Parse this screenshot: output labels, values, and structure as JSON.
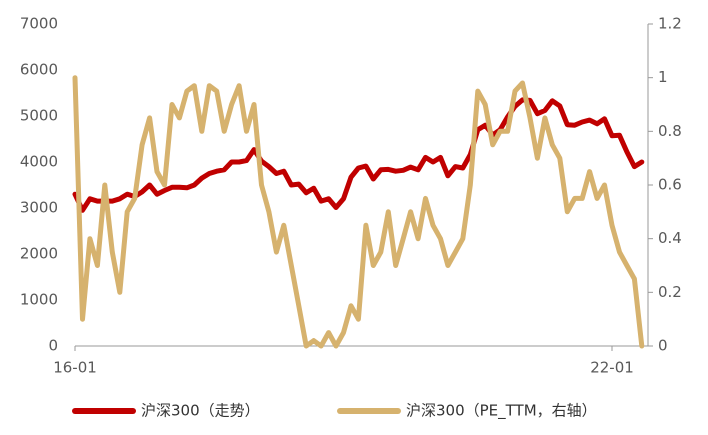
{
  "chart_data": {
    "type": "line",
    "categories": [
      "16-01",
      null,
      null,
      null,
      null,
      null,
      null,
      null,
      null,
      null,
      null,
      null,
      null,
      null,
      null,
      null,
      null,
      null,
      null,
      null,
      null,
      null,
      null,
      null,
      null,
      null,
      null,
      null,
      null,
      null,
      null,
      null,
      null,
      null,
      null,
      null,
      null,
      null,
      null,
      null,
      null,
      null,
      null,
      null,
      null,
      null,
      null,
      null,
      null,
      null,
      null,
      null,
      null,
      null,
      null,
      null,
      null,
      null,
      null,
      null,
      null,
      null,
      null,
      null,
      null,
      null,
      null,
      null,
      null,
      null,
      null,
      null,
      "22-01",
      null,
      null,
      null,
      null
    ],
    "series": [
      {
        "name": "沪深300（走势）",
        "color": "#c00000",
        "axis": "y",
        "values": [
          3300,
          2950,
          3200,
          3150,
          3150,
          3150,
          3200,
          3300,
          3250,
          3350,
          3500,
          3300,
          3380,
          3450,
          3450,
          3440,
          3500,
          3650,
          3750,
          3800,
          3830,
          4000,
          4000,
          4030,
          4270,
          4020,
          3900,
          3750,
          3800,
          3500,
          3520,
          3330,
          3430,
          3150,
          3200,
          3010,
          3200,
          3670,
          3870,
          3910,
          3630,
          3830,
          3840,
          3800,
          3820,
          3890,
          3830,
          4100,
          4000,
          4100,
          3700,
          3900,
          3870,
          4160,
          4700,
          4800,
          4590,
          4700,
          4980,
          5210,
          5350,
          5340,
          5050,
          5120,
          5330,
          5220,
          4810,
          4800,
          4870,
          4910,
          4830,
          4940,
          4570,
          4580,
          4220,
          3900,
          4000
        ]
      },
      {
        "name": "沪深300（PE_TTM，右轴）",
        "color": "#d6b26e",
        "axis": "y2",
        "values": [
          1.0,
          0.1,
          0.4,
          0.3,
          0.6,
          0.35,
          0.2,
          0.5,
          0.55,
          0.75,
          0.85,
          0.65,
          0.6,
          0.9,
          0.85,
          0.95,
          0.97,
          0.8,
          0.97,
          0.95,
          0.8,
          0.9,
          0.97,
          0.8,
          0.9,
          0.6,
          0.5,
          0.35,
          0.45,
          0.3,
          0.15,
          0.0,
          0.02,
          0.0,
          0.05,
          0.0,
          0.05,
          0.15,
          0.1,
          0.45,
          0.3,
          0.35,
          0.5,
          0.3,
          0.4,
          0.5,
          0.4,
          0.55,
          0.45,
          0.4,
          0.3,
          0.35,
          0.4,
          0.6,
          0.95,
          0.9,
          0.75,
          0.8,
          0.8,
          0.95,
          0.98,
          0.85,
          0.7,
          0.85,
          0.75,
          0.7,
          0.5,
          0.55,
          0.55,
          0.65,
          0.55,
          0.6,
          0.45,
          0.35,
          0.3,
          0.25,
          0.0
        ]
      }
    ],
    "ylim": [
      0,
      7000
    ],
    "yticks": [
      0,
      1000,
      2000,
      3000,
      4000,
      5000,
      6000,
      7000
    ],
    "y2lim": [
      0,
      1.2
    ],
    "y2ticks": [
      0,
      0.2,
      0.4,
      0.6,
      0.8,
      1,
      1.2
    ],
    "legend": "bottom",
    "grid": false
  }
}
